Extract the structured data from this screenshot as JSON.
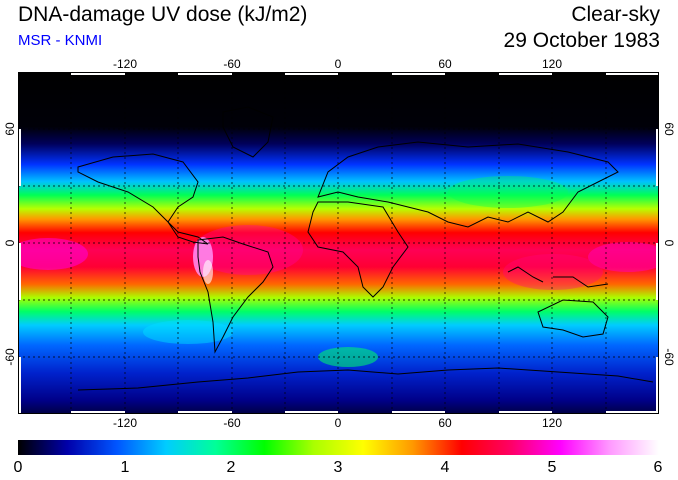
{
  "header": {
    "title": "DNA-damage UV dose (kJ/m2)",
    "subtitle": "MSR - KNMI",
    "condition": "Clear-sky",
    "date": "29 October 1983",
    "subtitle_color": "#0000ff"
  },
  "map": {
    "lon_ticks": [
      "-120",
      "-60",
      "0",
      "60",
      "120"
    ],
    "lat_ticks": [
      "60",
      "0",
      "-60"
    ],
    "projection": "equirectangular",
    "grid": "dotted 30-degree",
    "bands": [
      {
        "lat_range": [
          60,
          90
        ],
        "level": "black (0)"
      },
      {
        "lat_range": [
          30,
          60
        ],
        "level": "blue (1-2)"
      },
      {
        "lat_range": [
          15,
          30
        ],
        "level": "green-yellow (3-3.5)"
      },
      {
        "lat_range": [
          -20,
          15
        ],
        "level": "red-magenta (4-5.5)"
      },
      {
        "lat_range": [
          -45,
          -20
        ],
        "level": "green-cyan (2.5-3)"
      },
      {
        "lat_range": [
          -90,
          -45
        ],
        "level": "blue (1-2)"
      }
    ]
  },
  "colorbar": {
    "ticks": [
      "0",
      "1",
      "2",
      "3",
      "4",
      "5",
      "6"
    ],
    "colors": [
      "#000000",
      "#0000aa",
      "#0055ff",
      "#00ccff",
      "#00ff99",
      "#00ff00",
      "#aaff00",
      "#ffff00",
      "#ff9900",
      "#ff0000",
      "#ff0066",
      "#ff00ff",
      "#ff99ff",
      "#ffffff"
    ]
  }
}
